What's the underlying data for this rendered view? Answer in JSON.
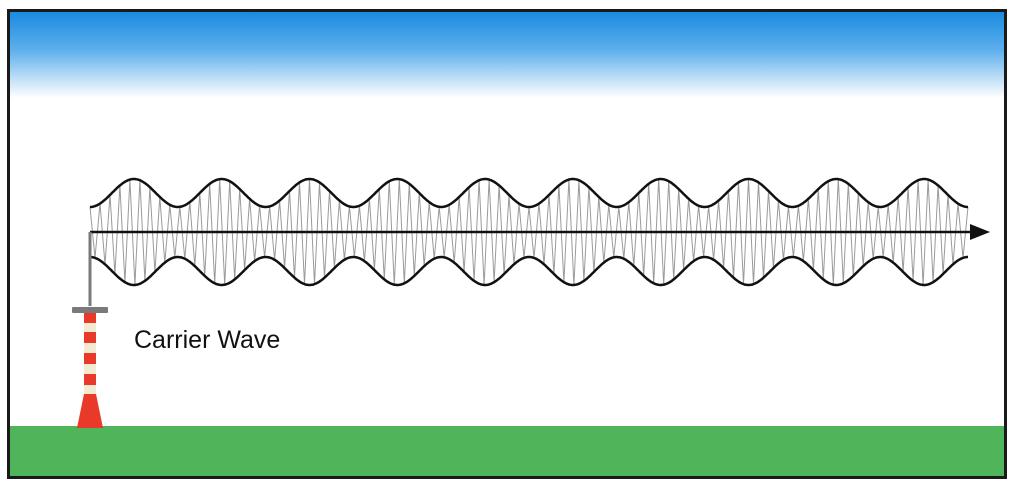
{
  "diagram": {
    "label": "Carrier Wave",
    "colors": {
      "sky_top": "#1a8be0",
      "ground": "#50b45a",
      "tower_red": "#e8392b",
      "tower_cream": "#f3ead2",
      "antenna_gray": "#7a7a7a",
      "envelope": "#111111",
      "carrier": "#9a9a9a",
      "axis": "#111111"
    },
    "envelope_cycles": 10,
    "carrier_cycles": 88
  }
}
